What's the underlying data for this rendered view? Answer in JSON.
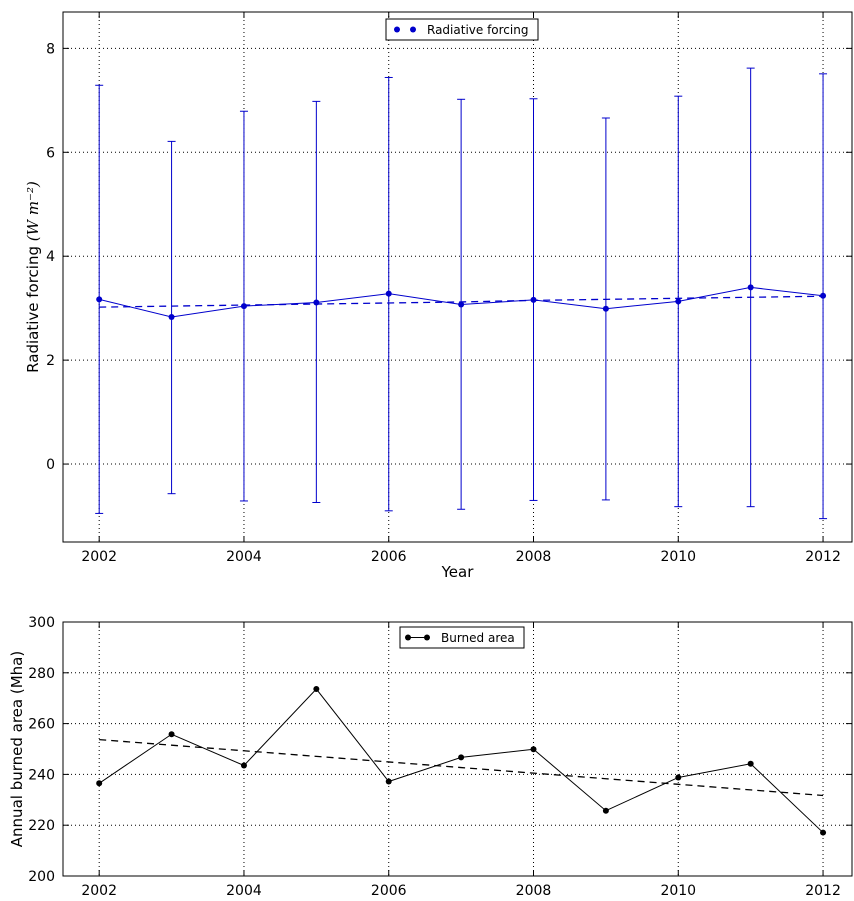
{
  "chart_data": [
    {
      "type": "line",
      "title": "",
      "xlabel": "Year",
      "ylabel": "Radiative forcing",
      "ylabel_unit": "(W m⁻²)",
      "x": [
        2002,
        2003,
        2004,
        2005,
        2006,
        2007,
        2008,
        2009,
        2010,
        2011,
        2012
      ],
      "xlim": [
        2001.5,
        2012.4
      ],
      "ylim": [
        -1.5,
        8.7
      ],
      "xticks": [
        "2002",
        "2004",
        "2006",
        "2008",
        "2010",
        "2012"
      ],
      "yticks": [
        "0",
        "2",
        "4",
        "6",
        "8"
      ],
      "grid": true,
      "legend_position": "top-center",
      "colors": {
        "series": "#0000cc",
        "trend": "#0000cc"
      },
      "series": [
        {
          "name": "Radiative forcing",
          "values": [
            3.17,
            2.83,
            3.04,
            3.11,
            3.28,
            3.07,
            3.16,
            2.99,
            3.13,
            3.4,
            3.24
          ],
          "err_low": [
            -0.95,
            -0.57,
            -0.71,
            -0.74,
            -0.9,
            -0.87,
            -0.7,
            -0.69,
            -0.82,
            -0.82,
            -1.05
          ],
          "err_high": [
            7.29,
            6.21,
            6.79,
            6.98,
            7.44,
            7.02,
            7.03,
            6.66,
            7.08,
            7.62,
            7.51
          ]
        }
      ],
      "trend": {
        "values": [
          3.02,
          3.04,
          3.06,
          3.08,
          3.1,
          3.12,
          3.15,
          3.17,
          3.19,
          3.21,
          3.23
        ]
      }
    },
    {
      "type": "line",
      "title": "",
      "xlabel": "",
      "ylabel": "Annual burned area (Mha)",
      "x": [
        2002,
        2003,
        2004,
        2005,
        2006,
        2007,
        2008,
        2009,
        2010,
        2011,
        2012
      ],
      "xlim": [
        2001.5,
        2012.4
      ],
      "ylim": [
        200,
        300
      ],
      "xticks": [
        "2002",
        "2004",
        "2006",
        "2008",
        "2010",
        "2012"
      ],
      "yticks": [
        "200",
        "220",
        "240",
        "260",
        "280",
        "300"
      ],
      "grid": true,
      "legend_position": "top-center",
      "colors": {
        "series": "#000000",
        "trend": "#000000"
      },
      "series": [
        {
          "name": "Burned area",
          "values": [
            236.5,
            255.8,
            243.5,
            273.6,
            237.2,
            246.7,
            249.9,
            225.7,
            238.8,
            244.2,
            217.1
          ]
        }
      ],
      "trend": {
        "values": [
          253.7,
          251.5,
          249.3,
          247.1,
          244.9,
          242.7,
          240.5,
          238.3,
          236.1,
          233.9,
          231.7
        ]
      }
    }
  ]
}
